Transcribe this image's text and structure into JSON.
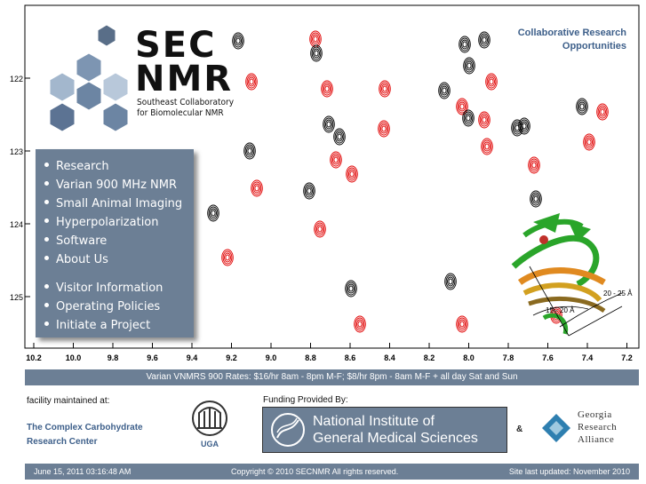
{
  "logo": {
    "line1": "SEC",
    "line2": "NMR",
    "subtitle1": "Southeast Collaboratory",
    "subtitle2": "for Biomolecular NMR"
  },
  "collab_link": {
    "line1": "Collaborative Research",
    "line2": "Opportunities"
  },
  "nav": {
    "items": [
      {
        "label": "Research"
      },
      {
        "label": "Varian 900 MHz NMR"
      },
      {
        "label": "Small Animal Imaging"
      },
      {
        "label": "Hyperpolarization"
      },
      {
        "label": "Software"
      },
      {
        "label": "About Us"
      },
      {
        "label": "Visitor Information"
      },
      {
        "label": "Operating Policies"
      },
      {
        "label": "Initiate a Project"
      }
    ]
  },
  "spectrum": {
    "y_ticks": [
      "122",
      "123",
      "124",
      "125"
    ],
    "x_ticks": [
      "10.2",
      "10.0",
      "9.8",
      "9.6",
      "9.4",
      "9.2",
      "9.0",
      "8.8",
      "8.6",
      "8.4",
      "8.2",
      "8.0",
      "7.8",
      "7.6",
      "7.4",
      "7.2"
    ],
    "annotation_1": "20 - 25 Å",
    "annotation_2": "15 - 20 Å",
    "colors": {
      "black_peaks": "#000000",
      "red_peaks": "#e00000",
      "protein_green": "#2aa52a",
      "protein_orange": "#e08a20"
    }
  },
  "rates": {
    "text": "Varian VNMRS 900 Rates: $16/hr 8am - 8pm M-F; $8/hr 8pm - 8am M-F + all day Sat and Sun"
  },
  "maintained": {
    "label": "facility maintained at:",
    "ccrc_line1": "The Complex Carbohydrate",
    "ccrc_line2": "Research Center",
    "uga": "UGA"
  },
  "funding": {
    "label": "Funding Provided By:",
    "nigms_line1": "National Institute of",
    "nigms_line2": "General Medical Sciences",
    "amp": "&",
    "gra_line1": "Georgia",
    "gra_line2": "Research",
    "gra_line3": "Alliance"
  },
  "footer": {
    "date": "June 15, 2011 03:16:48 AM",
    "copyright": "Copyright © 2010 SECNMR All rights reserved.",
    "updated": "Site last updated: November 2010"
  },
  "theme": {
    "panel": "#6c7f95",
    "link": "#3d5f8a"
  }
}
